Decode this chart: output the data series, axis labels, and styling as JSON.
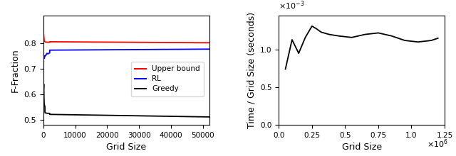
{
  "left": {
    "xlabel": "Grid Size",
    "ylabel": "F-Fraction",
    "xlim": [
      0,
      52000
    ],
    "ylim": [
      0.48,
      0.91
    ],
    "yticks": [
      0.5,
      0.6,
      0.7,
      0.8
    ],
    "xticks": [
      0,
      10000,
      20000,
      30000,
      40000,
      50000
    ],
    "xticklabels": [
      "0",
      "10000",
      "20000",
      "30000",
      "40000",
      "50000"
    ],
    "legend_labels": [
      "Upper bound",
      "RL",
      "Greedy"
    ],
    "legend_colors": [
      "red",
      "blue",
      "black"
    ]
  },
  "right": {
    "xlabel": "Grid Size",
    "ylabel": "Time / Grid Size (seconds)",
    "xlim": [
      0,
      1250000.0
    ],
    "ylim": [
      0.0,
      0.00145
    ],
    "yticks": [
      0.0,
      0.0005,
      0.001
    ],
    "yticklabels": [
      "0.0",
      "0.5",
      "1.0"
    ],
    "xticks": [
      0,
      250000.0,
      500000.0,
      750000.0,
      1000000.0,
      1250000.0
    ],
    "xticklabels": [
      "0.0",
      "0.25",
      "0.5",
      "0.75",
      "1.0",
      "1.25"
    ]
  }
}
